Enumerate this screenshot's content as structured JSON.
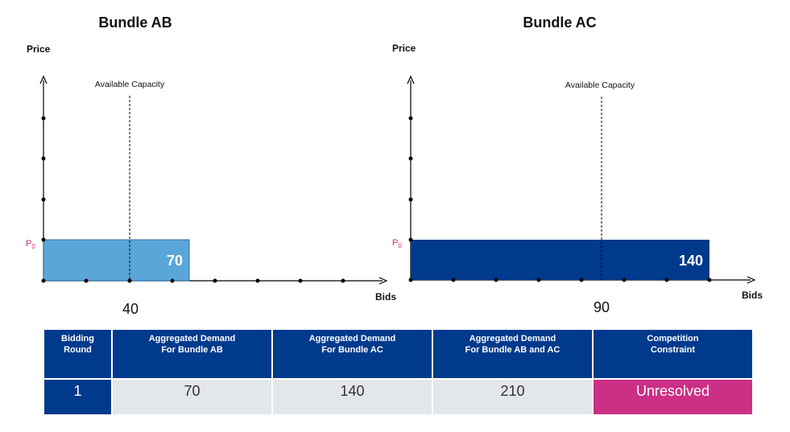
{
  "chart_data": [
    {
      "type": "bar",
      "title": "Bundle AB",
      "ylabel": "Price",
      "xlabel": "Bids",
      "price_label": "P",
      "price_sub": "0",
      "capacity_label": "Available Capacity",
      "capacity_value": "40",
      "bar_value": 70,
      "bar_label": "70",
      "bar_color": "#5aa6d9"
    },
    {
      "type": "bar",
      "title": "Bundle AC",
      "ylabel": "Price",
      "xlabel": "Bids",
      "price_label": "P",
      "price_sub": "0",
      "capacity_label": "Available Capacity",
      "capacity_value": "90",
      "bar_value": 140,
      "bar_label": "140",
      "bar_color": "#003a8c"
    }
  ],
  "table": {
    "headers": [
      [
        "Bidding",
        "Round"
      ],
      [
        "Aggregated Demand",
        "For Bundle AB"
      ],
      [
        "Aggregated Demand",
        "For Bundle AC"
      ],
      [
        "Aggregated Demand",
        "For Bundle AB and AC"
      ],
      [
        "Competition",
        "Constraint"
      ]
    ],
    "row": [
      "1",
      "70",
      "140",
      "210",
      "Unresolved"
    ]
  },
  "colors": {
    "header_bg": "#003a8c",
    "cell_bg": "#e3e6ea",
    "unresolved_bg": "#cc2f86",
    "p0_color": "#cc2f7f"
  }
}
